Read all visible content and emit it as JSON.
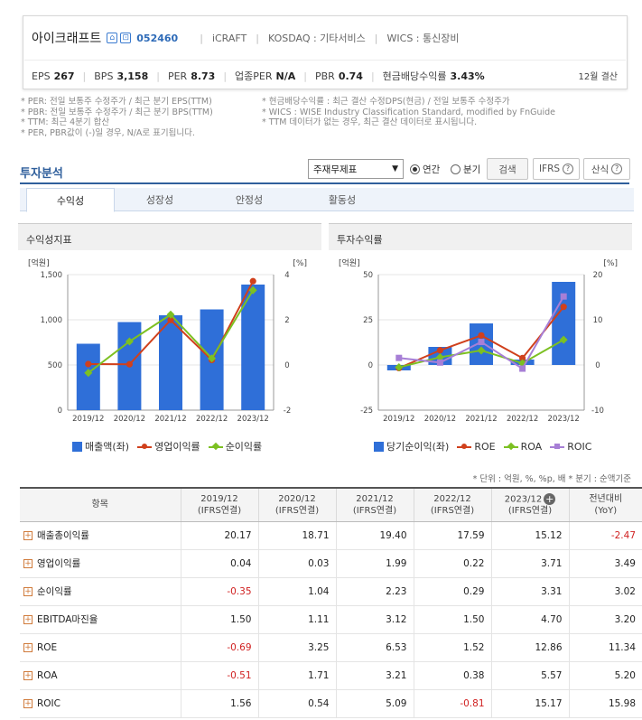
{
  "summary": {
    "company": "아이크래프트",
    "ticker": "052460",
    "name_en": "iCRAFT",
    "market": "KOSDAQ : 기타서비스",
    "wics": "WICS : 통신장비",
    "eps_label": "EPS",
    "eps": "267",
    "bps_label": "BPS",
    "bps": "3,158",
    "per_label": "PER",
    "per": "8.73",
    "ind_per_label": "업종PER",
    "ind_per": "N/A",
    "pbr_label": "PBR",
    "pbr": "0.74",
    "div_label": "현금배당수익률",
    "div": "3.43%",
    "fiscal": "12월 결산"
  },
  "notes": [
    "* PER: 전일 보통주 수정주가 / 최근 분기 EPS(TTM)",
    "* PBR: 전일 보통주 수정주가 / 최근 분기 BPS(TTM)",
    "* TTM: 최근 4분기 합산",
    "* PER, PBR값이 (-)일 경우, N/A로 표기됩니다.",
    "* 현금배당수익률 : 최근 결산 수정DPS(현금) / 전일 보통주 수정주가",
    "* WICS : WISE Industry Classification Standard, modified by FnGuide",
    "* TTM 데이터가 없는 경우, 최근 결산 데이터로 표시됩니다."
  ],
  "section": {
    "title": "투자분석",
    "select": "주재무제표",
    "radio_annual": "연간",
    "radio_quarter": "분기",
    "search": "검색",
    "ifrs": "IFRS",
    "formula": "산식"
  },
  "tabs": [
    "수익성",
    "성장성",
    "안정성",
    "활동성"
  ],
  "panels": {
    "left_title": "수익성지표",
    "right_title": "투자수익률"
  },
  "chart_data": [
    {
      "type": "bar",
      "title": "수익성지표",
      "categories": [
        "2019/12",
        "2020/12",
        "2021/12",
        "2022/12",
        "2023/12"
      ],
      "ylabel": "[억원]",
      "y2label": "[%]",
      "ylim": [
        0,
        1500
      ],
      "y2lim": [
        -2,
        4
      ],
      "yticks": [
        "0",
        "500",
        "1,000",
        "1,500"
      ],
      "y2ticks": [
        "-2",
        "0",
        "2",
        "4"
      ],
      "series": [
        {
          "name": "매출액(좌)",
          "kind": "bar",
          "axis": "left",
          "color": "#2f6fd8",
          "values": [
            735,
            975,
            1050,
            1115,
            1390
          ]
        },
        {
          "name": "영업이익률",
          "kind": "line",
          "axis": "right",
          "marker": "circle",
          "color": "#d0401c",
          "values": [
            0.04,
            0.03,
            1.99,
            0.22,
            3.71
          ]
        },
        {
          "name": "순이익률",
          "kind": "line",
          "axis": "right",
          "marker": "diamond",
          "color": "#7cc022",
          "values": [
            -0.35,
            1.04,
            2.23,
            0.29,
            3.31
          ]
        }
      ]
    },
    {
      "type": "bar",
      "title": "투자수익률",
      "categories": [
        "2019/12",
        "2020/12",
        "2021/12",
        "2022/12",
        "2023/12"
      ],
      "ylabel": "[억원]",
      "y2label": "[%]",
      "ylim": [
        -25,
        50
      ],
      "y2lim": [
        -10,
        20
      ],
      "yticks": [
        "-25",
        "0",
        "25",
        "50"
      ],
      "y2ticks": [
        "-10",
        "0",
        "10",
        "20"
      ],
      "series": [
        {
          "name": "당기순이익(좌)",
          "kind": "bar",
          "axis": "left",
          "color": "#2f6fd8",
          "values": [
            -3,
            10,
            23,
            3,
            46
          ]
        },
        {
          "name": "ROE",
          "kind": "line",
          "axis": "right",
          "marker": "circle",
          "color": "#d0401c",
          "values": [
            -0.69,
            3.25,
            6.53,
            1.52,
            12.86
          ]
        },
        {
          "name": "ROA",
          "kind": "line",
          "axis": "right",
          "marker": "diamond",
          "color": "#7cc022",
          "values": [
            -0.51,
            1.71,
            3.21,
            0.38,
            5.57
          ]
        },
        {
          "name": "ROIC",
          "kind": "line",
          "axis": "right",
          "marker": "square",
          "color": "#a77fd6",
          "values": [
            1.56,
            0.54,
            5.09,
            -0.81,
            15.17
          ]
        }
      ]
    },
    {
      "type": "table",
      "unit_note": "* 단위 : 억원, %, %p, 배       * 분기 : 순액기준",
      "columns": [
        "항목",
        "2019/12\n(IFRS연결)",
        "2020/12\n(IFRS연결)",
        "2021/12\n(IFRS연결)",
        "2022/12\n(IFRS연결)",
        "2023/12\n(IFRS연결)",
        "전년대비\n(YoY)"
      ],
      "rows": [
        {
          "label": "매출총이익률",
          "values": [
            "20.17",
            "18.71",
            "19.40",
            "17.59",
            "15.12",
            "-2.47"
          ]
        },
        {
          "label": "영업이익률",
          "values": [
            "0.04",
            "0.03",
            "1.99",
            "0.22",
            "3.71",
            "3.49"
          ]
        },
        {
          "label": "순이익률",
          "values": [
            "-0.35",
            "1.04",
            "2.23",
            "0.29",
            "3.31",
            "3.02"
          ]
        },
        {
          "label": "EBITDA마진율",
          "values": [
            "1.50",
            "1.11",
            "3.12",
            "1.50",
            "4.70",
            "3.20"
          ]
        },
        {
          "label": "ROE",
          "values": [
            "-0.69",
            "3.25",
            "6.53",
            "1.52",
            "12.86",
            "11.34"
          ]
        },
        {
          "label": "ROA",
          "values": [
            "-0.51",
            "1.71",
            "3.21",
            "0.38",
            "5.57",
            "5.20"
          ]
        },
        {
          "label": "ROIC",
          "values": [
            "1.56",
            "0.54",
            "5.09",
            "-0.81",
            "15.17",
            "15.98"
          ]
        }
      ]
    }
  ]
}
